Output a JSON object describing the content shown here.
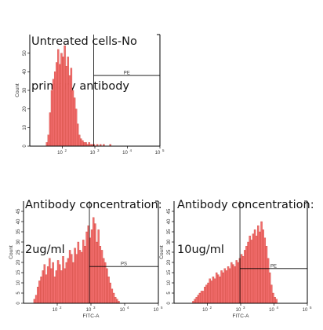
{
  "chart_data": [
    {
      "type": "histogram",
      "title": "Untreated cells-No\nprimary antibody",
      "title_lines": [
        "Untreated cells-No",
        "primary antibody"
      ],
      "xlabel": "",
      "ylabel": "Count",
      "x_scale": "log",
      "xlim": [
        10,
        100000
      ],
      "ylim": [
        0,
        60
      ],
      "x_ticks": [
        "10",
        "10",
        "10",
        "10"
      ],
      "x_tick_exponents": [
        "2",
        "3",
        "4",
        "5"
      ],
      "y_ticks": [
        "0",
        "10",
        "20",
        "30",
        "40",
        "50"
      ],
      "fill_color": "#f26d6d",
      "gate": {
        "label": "PE",
        "start": 920,
        "end": 100000,
        "level": 38
      },
      "bins_log10": [
        1.5,
        1.55,
        1.6,
        1.65,
        1.7,
        1.75,
        1.8,
        1.85,
        1.9,
        1.95,
        2.0,
        2.05,
        2.1,
        2.15,
        2.2,
        2.25,
        2.3,
        2.35,
        2.4,
        2.45,
        2.5,
        2.55,
        2.6,
        2.65,
        2.7,
        2.75,
        2.8,
        2.85,
        2.9,
        2.95,
        3.0,
        3.05,
        3.1,
        3.15,
        3.2,
        3.25,
        3.3,
        3.35,
        3.4,
        3.45,
        3.5,
        3.55,
        3.6
      ],
      "counts": [
        2,
        6,
        18,
        30,
        36,
        40,
        45,
        52,
        44,
        50,
        48,
        54,
        43,
        48,
        38,
        42,
        30,
        26,
        20,
        12,
        6,
        4,
        3,
        2,
        2,
        1,
        2,
        1,
        1,
        1,
        0,
        1,
        0,
        1,
        0,
        1,
        0,
        0,
        0,
        1,
        0,
        0,
        0
      ]
    },
    {
      "type": "histogram",
      "title": "Antibody concentration:\n2ug/ml",
      "title_lines": [
        "Antibody concentration:",
        "2ug/ml"
      ],
      "xlabel": "FITC-A",
      "ylabel": "Count",
      "x_scale": "log",
      "xlim": [
        10,
        100000
      ],
      "ylim": [
        0,
        50
      ],
      "x_ticks": [
        "10",
        "10",
        "10",
        "10"
      ],
      "x_tick_exponents": [
        "2",
        "3",
        "4",
        "5"
      ],
      "y_ticks": [
        "0",
        "5",
        "10",
        "15",
        "20",
        "25",
        "30",
        "35",
        "40",
        "45"
      ],
      "fill_color": "#f26d6d",
      "gate": {
        "label": "PS",
        "start": 900,
        "end": 100000,
        "level": 18
      },
      "bins_log10": [
        1.3,
        1.35,
        1.4,
        1.45,
        1.5,
        1.55,
        1.6,
        1.65,
        1.7,
        1.75,
        1.8,
        1.85,
        1.9,
        1.95,
        2.0,
        2.05,
        2.1,
        2.15,
        2.2,
        2.25,
        2.3,
        2.35,
        2.4,
        2.45,
        2.5,
        2.55,
        2.6,
        2.65,
        2.7,
        2.75,
        2.8,
        2.85,
        2.9,
        2.95,
        3.0,
        3.05,
        3.1,
        3.15,
        3.2,
        3.25,
        3.3,
        3.35,
        3.4,
        3.45,
        3.5,
        3.55,
        3.6,
        3.65,
        3.7,
        3.75,
        3.8
      ],
      "counts": [
        2,
        4,
        8,
        11,
        13,
        16,
        19,
        14,
        18,
        22,
        17,
        20,
        13,
        16,
        21,
        19,
        16,
        23,
        17,
        20,
        22,
        26,
        24,
        20,
        27,
        24,
        30,
        26,
        25,
        31,
        28,
        35,
        38,
        32,
        36,
        42,
        39,
        30,
        36,
        28,
        26,
        22,
        20,
        17,
        13,
        10,
        7,
        5,
        3,
        2,
        1
      ]
    },
    {
      "type": "histogram",
      "title": "Antibody concentration:\n10ug/ml",
      "title_lines": [
        "Antibody concentration:",
        "10ug/ml"
      ],
      "xlabel": "FITC-A",
      "ylabel": "Count",
      "x_scale": "log",
      "xlim": [
        10,
        100000
      ],
      "ylim": [
        0,
        50
      ],
      "x_ticks": [
        "10",
        "10",
        "10",
        "10"
      ],
      "x_tick_exponents": [
        "2",
        "3",
        "4",
        "5"
      ],
      "y_ticks": [
        "0",
        "5",
        "10",
        "15",
        "20",
        "25",
        "30",
        "35",
        "40",
        "45"
      ],
      "fill_color": "#f26d6d",
      "gate": {
        "label": "PE",
        "start": 950,
        "end": 100000,
        "level": 17
      },
      "bins_log10": [
        1.55,
        1.6,
        1.65,
        1.7,
        1.75,
        1.8,
        1.85,
        1.9,
        1.95,
        2.0,
        2.05,
        2.1,
        2.15,
        2.2,
        2.25,
        2.3,
        2.35,
        2.4,
        2.45,
        2.5,
        2.55,
        2.6,
        2.65,
        2.7,
        2.75,
        2.8,
        2.85,
        2.9,
        2.95,
        3.0,
        3.05,
        3.1,
        3.15,
        3.2,
        3.25,
        3.3,
        3.35,
        3.4,
        3.45,
        3.5,
        3.55,
        3.6,
        3.65,
        3.7,
        3.75,
        3.8,
        3.85,
        3.9,
        3.95,
        4.0,
        4.05
      ],
      "counts": [
        1,
        2,
        3,
        4,
        5,
        6,
        6,
        8,
        9,
        10,
        12,
        11,
        13,
        12,
        15,
        14,
        13,
        16,
        15,
        17,
        16,
        18,
        17,
        20,
        19,
        18,
        21,
        20,
        22,
        24,
        23,
        26,
        28,
        30,
        33,
        31,
        34,
        36,
        33,
        38,
        35,
        40,
        36,
        32,
        28,
        22,
        15,
        9,
        5,
        3,
        2
      ]
    }
  ]
}
